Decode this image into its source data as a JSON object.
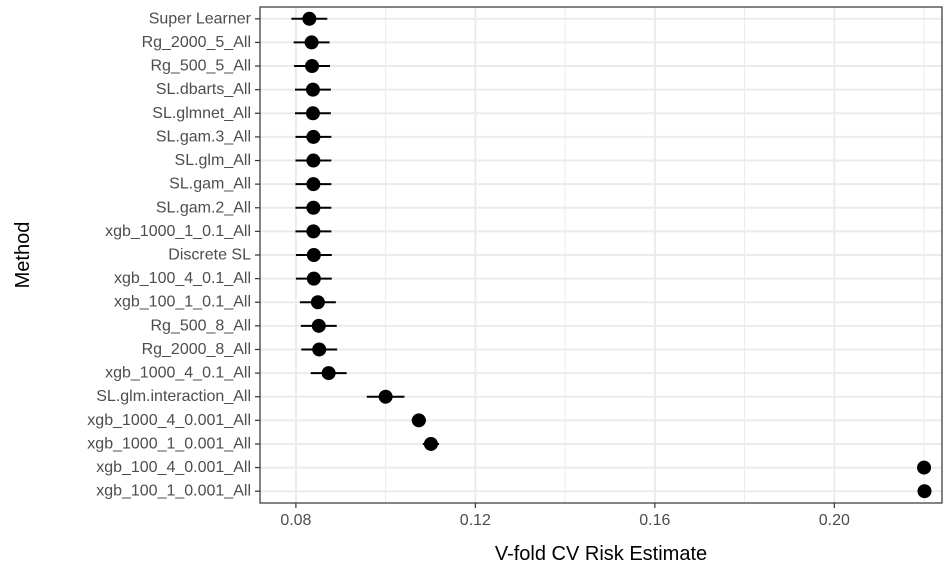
{
  "chart_data": {
    "type": "scatter",
    "variant": "dot-and-whisker",
    "xlabel": "V-fold CV Risk Estimate",
    "ylabel": "Method",
    "xlim": [
      0.072,
      0.224
    ],
    "x_ticks": [
      0.08,
      0.12,
      0.16,
      0.2
    ],
    "x_tick_labels": [
      "0.08",
      "0.12",
      "0.16",
      "0.20"
    ],
    "grid": true,
    "legend": "none",
    "colors": {
      "point": "#000000",
      "grid": "#ebebeb",
      "panel_border": "#333333",
      "background": "#ffffff"
    },
    "categories": [
      "Super Learner",
      "Rg_2000_5_All",
      "Rg_500_5_All",
      "SL.dbarts_All",
      "SL.glmnet_All",
      "SL.gam.3_All",
      "SL.glm_All",
      "SL.gam_All",
      "SL.gam.2_All",
      "xgb_1000_1_0.1_All",
      "Discrete SL",
      "xgb_100_4_0.1_All",
      "xgb_100_1_0.1_All",
      "Rg_500_8_All",
      "Rg_2000_8_All",
      "xgb_1000_4_0.1_All",
      "SL.glm.interaction_All",
      "xgb_1000_4_0.001_All",
      "xgb_1000_1_0.001_All",
      "xgb_100_4_0.001_All",
      "xgb_100_1_0.001_All"
    ],
    "points": [
      {
        "estimate": 0.083,
        "lower": 0.079,
        "upper": 0.087
      },
      {
        "estimate": 0.0835,
        "lower": 0.0795,
        "upper": 0.0875
      },
      {
        "estimate": 0.0836,
        "lower": 0.0796,
        "upper": 0.0876
      },
      {
        "estimate": 0.0838,
        "lower": 0.0798,
        "upper": 0.0878
      },
      {
        "estimate": 0.0838,
        "lower": 0.0798,
        "upper": 0.0878
      },
      {
        "estimate": 0.0839,
        "lower": 0.0799,
        "upper": 0.0879
      },
      {
        "estimate": 0.0839,
        "lower": 0.0799,
        "upper": 0.0879
      },
      {
        "estimate": 0.0839,
        "lower": 0.0799,
        "upper": 0.0879
      },
      {
        "estimate": 0.0839,
        "lower": 0.0799,
        "upper": 0.0879
      },
      {
        "estimate": 0.0839,
        "lower": 0.0799,
        "upper": 0.0879
      },
      {
        "estimate": 0.084,
        "lower": 0.08,
        "upper": 0.088
      },
      {
        "estimate": 0.084,
        "lower": 0.08,
        "upper": 0.088
      },
      {
        "estimate": 0.0849,
        "lower": 0.0809,
        "upper": 0.0889
      },
      {
        "estimate": 0.0851,
        "lower": 0.0811,
        "upper": 0.0891
      },
      {
        "estimate": 0.0852,
        "lower": 0.0812,
        "upper": 0.0892
      },
      {
        "estimate": 0.0873,
        "lower": 0.0833,
        "upper": 0.0913
      },
      {
        "estimate": 0.1,
        "lower": 0.0958,
        "upper": 0.1042
      },
      {
        "estimate": 0.1074,
        "lower": 0.1058,
        "upper": 0.109
      },
      {
        "estimate": 0.1101,
        "lower": 0.1083,
        "upper": 0.1119
      },
      {
        "estimate": 0.22,
        "lower": 0.2198,
        "upper": 0.2202
      },
      {
        "estimate": 0.2201,
        "lower": 0.2199,
        "upper": 0.2203
      }
    ]
  }
}
